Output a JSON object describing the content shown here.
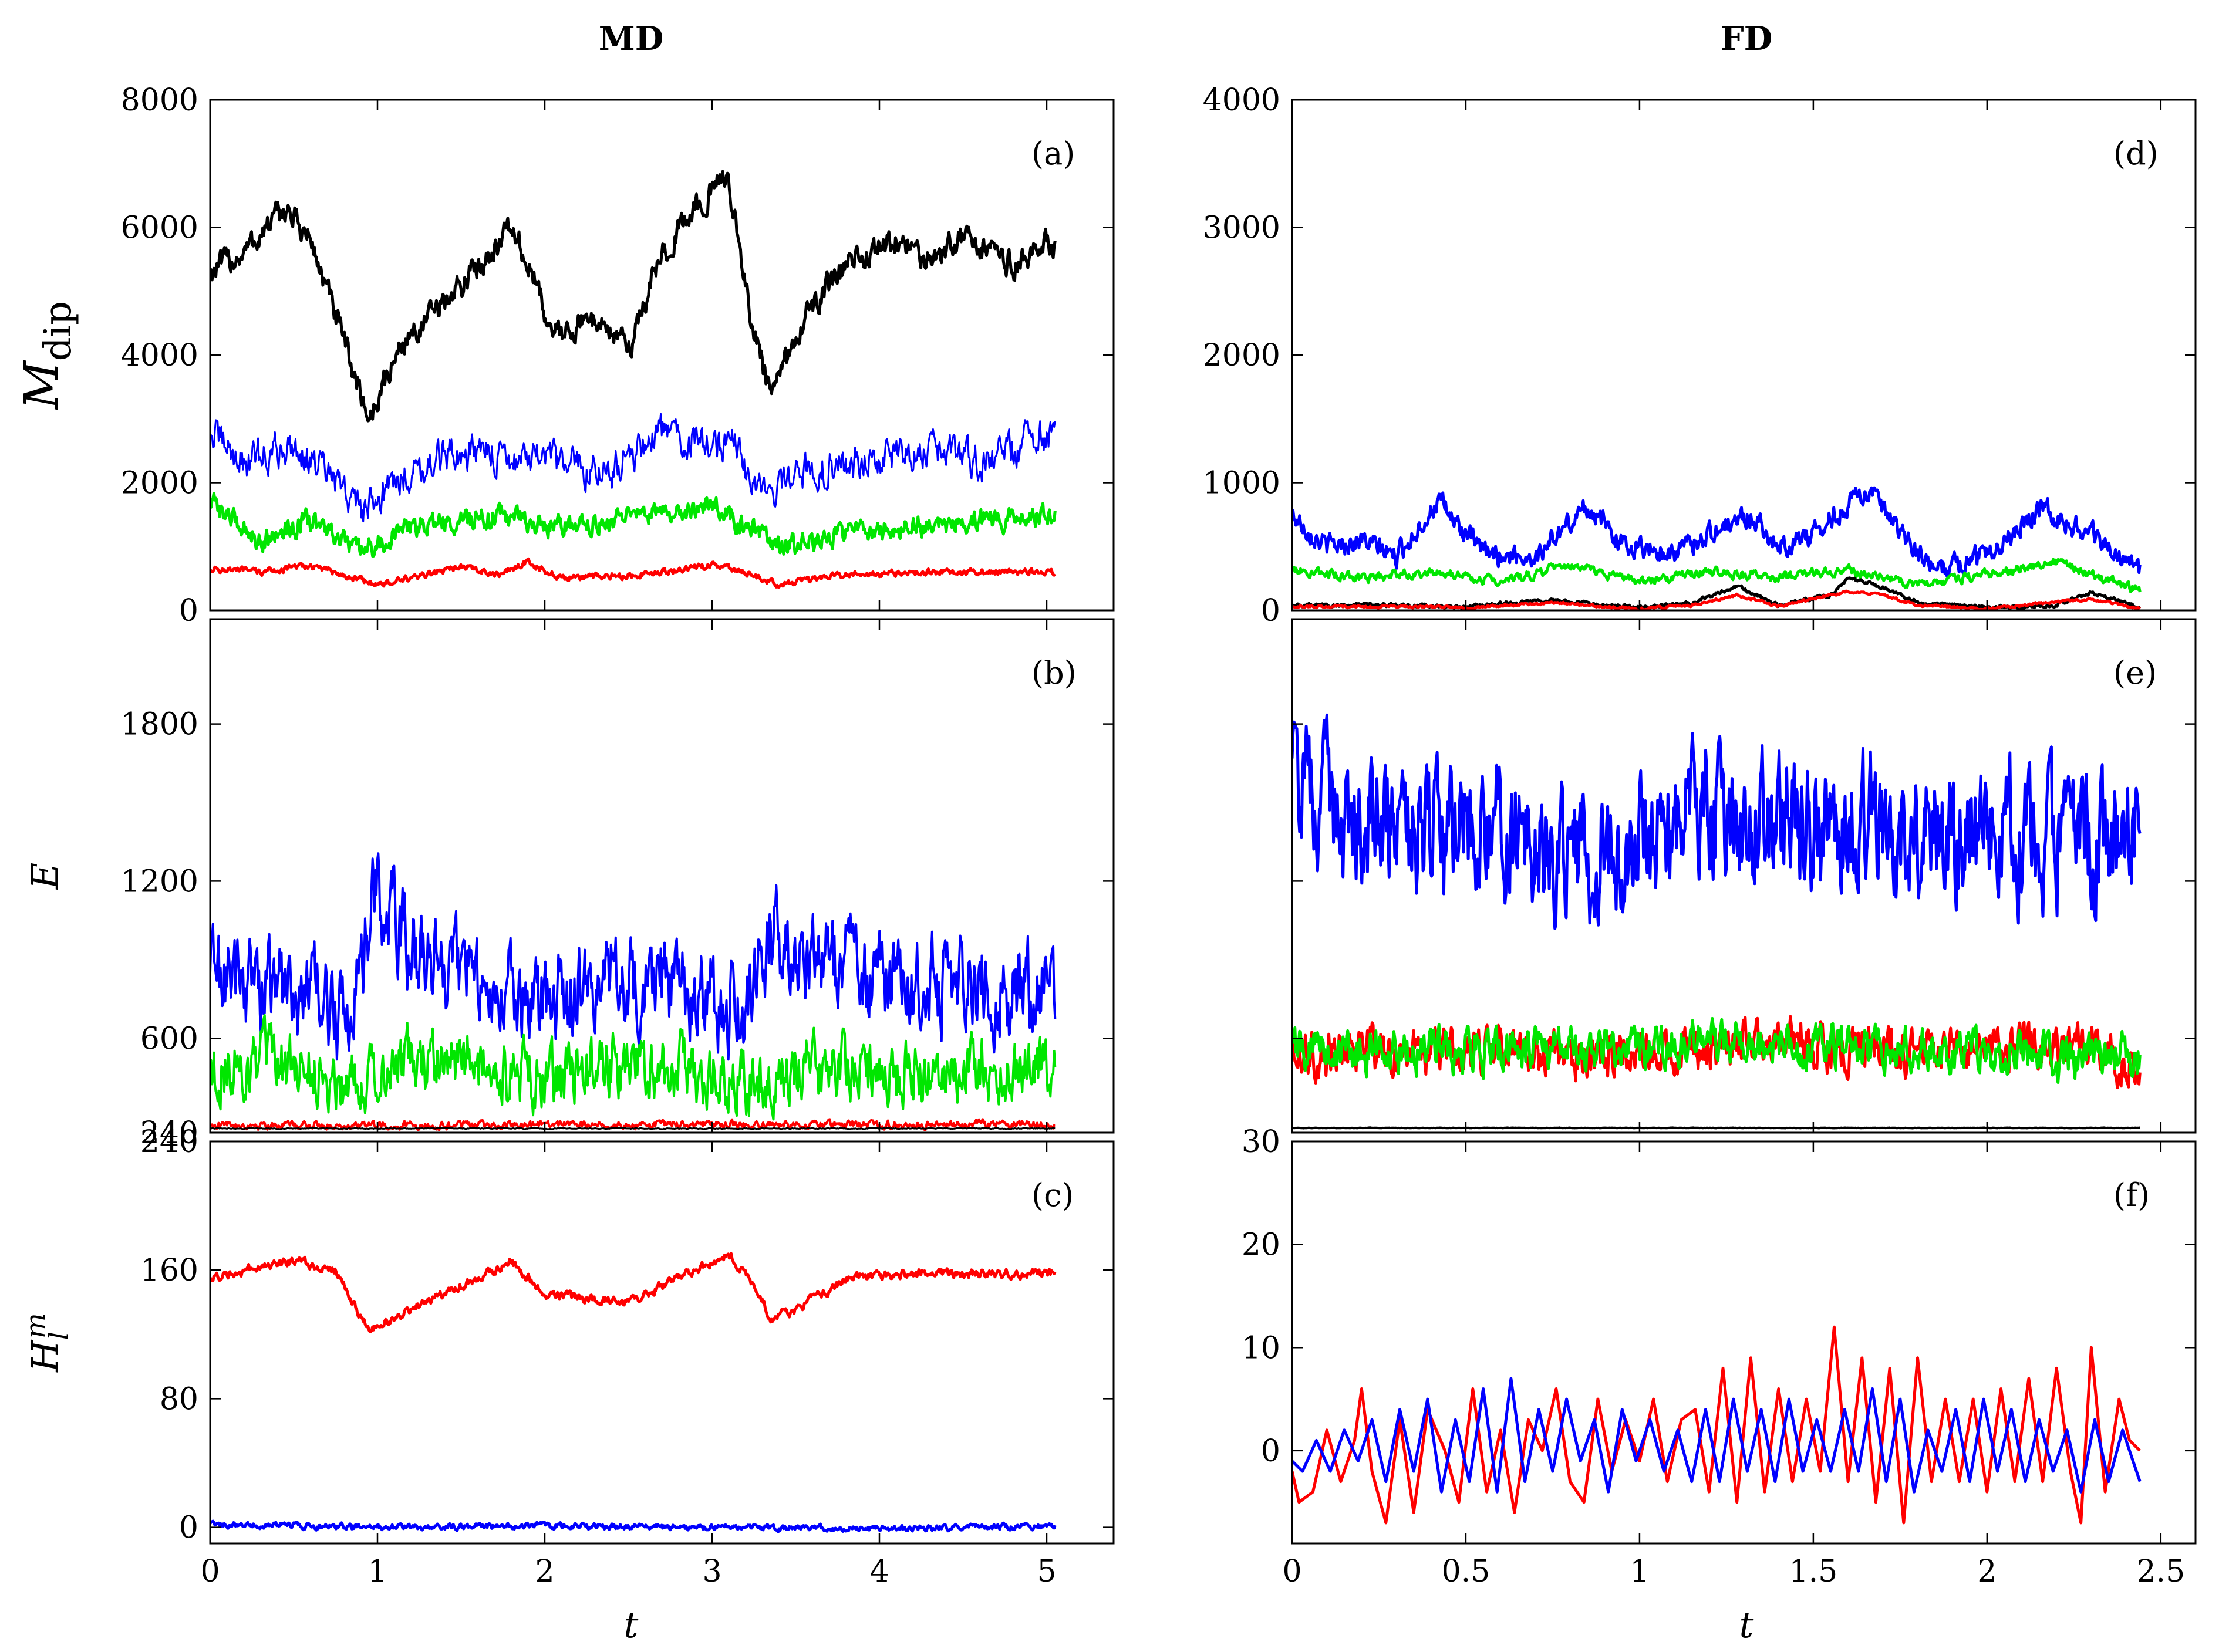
{
  "columns": [
    {
      "title": "MD"
    },
    {
      "title": "FD"
    }
  ],
  "xlabel": "t",
  "colors": {
    "black": "#000000",
    "blue": "#0000ff",
    "green": "#00e600",
    "red": "#ff0000"
  },
  "chart_data": [
    {
      "panel": "a",
      "label": "(a)",
      "type": "line",
      "ylabel": "M",
      "ylabel_sub": "dip",
      "xlim": [
        0,
        5.4
      ],
      "ylim": [
        0,
        8000
      ],
      "xticks": [
        0,
        1,
        2,
        3,
        4,
        5
      ],
      "yticks": [
        0,
        2000,
        4000,
        6000,
        8000
      ],
      "show_xticklabels": false,
      "series": [
        {
          "name": "black",
          "color": "#000000",
          "noise": 220,
          "width": 5,
          "x": [
            0,
            0.2,
            0.45,
            0.6,
            0.75,
            0.95,
            1.15,
            1.4,
            1.6,
            1.8,
            1.95,
            2.05,
            2.3,
            2.5,
            2.7,
            2.9,
            3.1,
            3.2,
            3.35,
            3.55,
            3.8,
            4.1,
            4.3,
            4.5,
            4.8,
            5.05
          ],
          "y": [
            5300,
            5600,
            6300,
            5800,
            4600,
            3000,
            4200,
            4800,
            5400,
            6000,
            5100,
            4300,
            4600,
            4100,
            5600,
            6300,
            6800,
            5000,
            3300,
            4600,
            5400,
            5800,
            5500,
            5900,
            5400,
            5800
          ]
        },
        {
          "name": "blue",
          "color": "#0000ff",
          "noise": 300,
          "width": 3,
          "x": [
            0,
            0.2,
            0.5,
            0.7,
            0.9,
            1.2,
            1.5,
            1.8,
            2.0,
            2.4,
            2.7,
            3.0,
            3.1,
            3.3,
            3.6,
            4.0,
            4.3,
            4.6,
            5.05
          ],
          "y": [
            2800,
            2300,
            2600,
            2100,
            1600,
            2200,
            2500,
            2400,
            2300,
            2200,
            2800,
            2600,
            2700,
            1800,
            2200,
            2400,
            2500,
            2300,
            2800
          ]
        },
        {
          "name": "green",
          "color": "#00e600",
          "noise": 180,
          "width": 5,
          "x": [
            0,
            0.3,
            0.6,
            0.9,
            1.2,
            1.5,
            1.8,
            2.0,
            2.3,
            2.7,
            3.0,
            3.2,
            3.4,
            3.8,
            4.2,
            4.6,
            5.05
          ],
          "y": [
            1700,
            1100,
            1400,
            900,
            1300,
            1400,
            1500,
            1300,
            1400,
            1500,
            1700,
            1300,
            1000,
            1200,
            1300,
            1400,
            1500
          ]
        },
        {
          "name": "red",
          "color": "#ff0000",
          "noise": 55,
          "width": 5,
          "x": [
            0,
            0.3,
            0.6,
            0.8,
            1.0,
            1.3,
            1.5,
            1.7,
            1.9,
            2.1,
            2.5,
            3.0,
            3.2,
            3.4,
            3.8,
            4.2,
            4.6,
            5.05
          ],
          "y": [
            650,
            600,
            700,
            550,
            400,
            550,
            700,
            550,
            750,
            500,
            550,
            700,
            600,
            400,
            550,
            600,
            600,
            600
          ]
        }
      ]
    },
    {
      "panel": "b",
      "label": "(b)",
      "type": "line",
      "ylabel": "E",
      "xlim": [
        0,
        5.4
      ],
      "ylim": [
        240,
        2200
      ],
      "xticks": [
        0,
        1,
        2,
        3,
        4,
        5
      ],
      "yticks": [
        240,
        600,
        1200,
        1800
      ],
      "show_xticklabels": false,
      "series": [
        {
          "name": "blue",
          "color": "#0000ff",
          "noise": 190,
          "width": 4,
          "x": [
            0,
            0.3,
            0.6,
            0.8,
            1.0,
            1.2,
            1.5,
            1.8,
            2.0,
            2.4,
            2.8,
            3.2,
            3.35,
            3.6,
            4.0,
            4.4,
            4.8,
            5.05
          ],
          "y": [
            870,
            800,
            780,
            650,
            1150,
            950,
            850,
            800,
            700,
            850,
            780,
            700,
            1000,
            900,
            820,
            800,
            780,
            800
          ]
        },
        {
          "name": "green",
          "color": "#00e600",
          "noise": 130,
          "width": 4,
          "x": [
            0,
            0.4,
            0.8,
            1.2,
            1.6,
            2.0,
            2.4,
            2.8,
            3.2,
            3.6,
            4.0,
            4.5,
            5.05
          ],
          "y": [
            480,
            500,
            440,
            520,
            470,
            430,
            500,
            480,
            430,
            500,
            470,
            480,
            500
          ]
        },
        {
          "name": "red",
          "color": "#ff0000",
          "noise": 16,
          "width": 4,
          "x": [
            0,
            1,
            2,
            3,
            4,
            5.05
          ],
          "y": [
            270,
            268,
            270,
            272,
            270,
            272
          ]
        },
        {
          "name": "black",
          "color": "#000000",
          "noise": 2,
          "width": 3,
          "x": [
            0,
            5.05
          ],
          "y": [
            256,
            256
          ]
        }
      ]
    },
    {
      "panel": "c",
      "label": "(c)",
      "type": "line",
      "ylabel": "H",
      "ylabel_sub": "l",
      "ylabel_sup": "m",
      "xlim": [
        0,
        5.4
      ],
      "ylim": [
        -10,
        240
      ],
      "xticks": [
        0,
        1,
        2,
        3,
        4,
        5
      ],
      "yticks": [
        0,
        80,
        160,
        240
      ],
      "show_xticklabels": true,
      "series": [
        {
          "name": "red",
          "color": "#ff0000",
          "noise": 3,
          "width": 5,
          "x": [
            0,
            0.2,
            0.5,
            0.75,
            0.85,
            0.95,
            1.2,
            1.5,
            1.8,
            2.0,
            2.5,
            3.1,
            3.25,
            3.35,
            3.5,
            3.8,
            4.2,
            5.05
          ],
          "y": [
            155,
            160,
            166,
            160,
            140,
            122,
            135,
            150,
            165,
            145,
            140,
            170,
            150,
            130,
            135,
            155,
            158,
            158
          ]
        },
        {
          "name": "blue",
          "color": "#0000ff",
          "noise": 2,
          "width": 5,
          "x": [
            0,
            1,
            2,
            3,
            4,
            5.05
          ],
          "y": [
            2,
            0,
            1,
            0,
            -1,
            1
          ]
        }
      ]
    },
    {
      "panel": "d",
      "label": "(d)",
      "type": "line",
      "xlim": [
        0,
        2.6
      ],
      "ylim": [
        0,
        4000
      ],
      "xticks": [
        0,
        0.5,
        1,
        1.5,
        2,
        2.5
      ],
      "yticks": [
        0,
        1000,
        2000,
        3000,
        4000
      ],
      "show_xticklabels": false,
      "series": [
        {
          "name": "blue",
          "color": "#0000ff",
          "noise": 90,
          "width": 5,
          "x": [
            0,
            0.1,
            0.2,
            0.3,
            0.42,
            0.55,
            0.7,
            0.85,
            0.95,
            1.1,
            1.2,
            1.32,
            1.4,
            1.5,
            1.65,
            1.75,
            1.85,
            2.0,
            2.15,
            2.3,
            2.44
          ],
          "y": [
            750,
            500,
            550,
            420,
            850,
            450,
            420,
            820,
            520,
            450,
            600,
            750,
            500,
            600,
            950,
            600,
            300,
            450,
            800,
            600,
            300
          ]
        },
        {
          "name": "green",
          "color": "#00e600",
          "noise": 40,
          "width": 5,
          "x": [
            0,
            0.2,
            0.4,
            0.6,
            0.8,
            1.0,
            1.2,
            1.4,
            1.6,
            1.8,
            2.0,
            2.2,
            2.44
          ],
          "y": [
            330,
            250,
            300,
            220,
            350,
            220,
            300,
            260,
            320,
            200,
            280,
            380,
            150
          ]
        },
        {
          "name": "black",
          "color": "#000000",
          "noise": 15,
          "width": 5,
          "x": [
            0,
            0.3,
            0.5,
            0.75,
            1.0,
            1.15,
            1.28,
            1.4,
            1.55,
            1.6,
            1.7,
            1.8,
            2.0,
            2.2,
            2.3,
            2.44
          ],
          "y": [
            40,
            40,
            30,
            80,
            20,
            60,
            190,
            40,
            120,
            250,
            180,
            60,
            20,
            40,
            140,
            20
          ]
        },
        {
          "name": "red",
          "color": "#ff0000",
          "noise": 10,
          "width": 5,
          "x": [
            0,
            0.3,
            0.5,
            0.75,
            1.0,
            1.15,
            1.28,
            1.4,
            1.6,
            1.7,
            1.8,
            2.0,
            2.3,
            2.44
          ],
          "y": [
            30,
            30,
            20,
            60,
            10,
            40,
            120,
            30,
            150,
            120,
            40,
            15,
            90,
            10
          ]
        }
      ]
    },
    {
      "panel": "e",
      "label": "(e)",
      "type": "line",
      "xlim": [
        0,
        2.6
      ],
      "ylim": [
        240,
        2200
      ],
      "xticks": [
        0,
        0.5,
        1,
        1.5,
        2,
        2.5
      ],
      "yticks": [
        240,
        600,
        1200,
        1800
      ],
      "show_yticklabels": false,
      "show_xticklabels": false,
      "series": [
        {
          "name": "blue",
          "color": "#0000ff",
          "noise": 260,
          "width": 5,
          "x": [
            0,
            0.2,
            0.4,
            0.6,
            0.8,
            1.0,
            1.2,
            1.4,
            1.6,
            1.8,
            2.0,
            2.2,
            2.44
          ],
          "y": [
            1550,
            1450,
            1350,
            1400,
            1300,
            1350,
            1450,
            1400,
            1450,
            1350,
            1400,
            1350,
            1350
          ]
        },
        {
          "name": "red",
          "color": "#ff0000",
          "noise": 90,
          "width": 5,
          "x": [
            0,
            0.2,
            0.4,
            0.6,
            0.8,
            1.0,
            1.2,
            1.4,
            1.5,
            1.6,
            1.8,
            2.0,
            2.2,
            2.44
          ],
          "y": [
            530,
            560,
            540,
            550,
            520,
            560,
            560,
            620,
            540,
            560,
            540,
            560,
            570,
            480
          ]
        },
        {
          "name": "green",
          "color": "#00e600",
          "noise": 85,
          "width": 5,
          "x": [
            0,
            0.3,
            0.6,
            0.9,
            1.2,
            1.5,
            1.8,
            2.1,
            2.44
          ],
          "y": [
            560,
            540,
            560,
            550,
            600,
            560,
            560,
            540,
            520
          ]
        },
        {
          "name": "black",
          "color": "#000000",
          "noise": 1,
          "width": 4,
          "x": [
            0,
            2.44
          ],
          "y": [
            258,
            258
          ]
        }
      ]
    },
    {
      "panel": "f",
      "label": "(f)",
      "type": "line",
      "xlim": [
        0,
        2.6
      ],
      "ylim": [
        -9,
        30
      ],
      "xticks": [
        0,
        0.5,
        1,
        1.5,
        2,
        2.5
      ],
      "yticks": [
        0,
        10,
        20,
        30
      ],
      "show_xticklabels": true,
      "series": [
        {
          "name": "red",
          "color": "#ff0000",
          "noise": 0,
          "width": 5,
          "x": [
            0.0,
            0.02,
            0.06,
            0.1,
            0.14,
            0.18,
            0.2,
            0.23,
            0.27,
            0.31,
            0.35,
            0.39,
            0.44,
            0.48,
            0.52,
            0.56,
            0.6,
            0.64,
            0.68,
            0.72,
            0.76,
            0.8,
            0.84,
            0.88,
            0.92,
            0.96,
            1.0,
            1.04,
            1.08,
            1.12,
            1.16,
            1.2,
            1.24,
            1.28,
            1.32,
            1.36,
            1.4,
            1.44,
            1.48,
            1.52,
            1.56,
            1.6,
            1.64,
            1.68,
            1.72,
            1.76,
            1.8,
            1.84,
            1.88,
            1.92,
            1.96,
            2.0,
            2.04,
            2.08,
            2.12,
            2.16,
            2.2,
            2.24,
            2.27,
            2.3,
            2.34,
            2.38,
            2.41,
            2.44
          ],
          "y": [
            -2,
            -5,
            -4,
            2,
            -3,
            1,
            6,
            -2,
            -7,
            3,
            -6,
            4,
            0,
            -5,
            6,
            -4,
            2,
            -6,
            3,
            0,
            6,
            -3,
            -5,
            5,
            -2,
            3,
            -1,
            5,
            -3,
            3,
            4,
            -4,
            8,
            -5,
            9,
            -4,
            6,
            -3,
            5,
            -2,
            12,
            -3,
            9,
            -5,
            8,
            -7,
            9,
            -3,
            5,
            -3,
            5,
            -4,
            6,
            -3,
            7,
            -3,
            8,
            -2,
            -7,
            10,
            -4,
            5,
            1,
            0
          ]
        },
        {
          "name": "blue",
          "color": "#0000ff",
          "noise": 0,
          "width": 5,
          "x": [
            0.0,
            0.03,
            0.07,
            0.11,
            0.15,
            0.19,
            0.23,
            0.27,
            0.31,
            0.35,
            0.39,
            0.43,
            0.47,
            0.51,
            0.55,
            0.59,
            0.63,
            0.67,
            0.71,
            0.75,
            0.79,
            0.83,
            0.87,
            0.91,
            0.95,
            0.99,
            1.03,
            1.07,
            1.11,
            1.15,
            1.19,
            1.23,
            1.27,
            1.31,
            1.35,
            1.39,
            1.43,
            1.47,
            1.51,
            1.55,
            1.59,
            1.63,
            1.67,
            1.71,
            1.75,
            1.79,
            1.83,
            1.87,
            1.91,
            1.95,
            1.99,
            2.03,
            2.07,
            2.11,
            2.15,
            2.19,
            2.23,
            2.27,
            2.31,
            2.35,
            2.39,
            2.44
          ],
          "y": [
            -1,
            -2,
            1,
            -2,
            2,
            -1,
            3,
            -3,
            4,
            -2,
            5,
            -4,
            3,
            -3,
            6,
            -4,
            7,
            -3,
            4,
            -2,
            5,
            -1,
            3,
            -4,
            4,
            -1,
            3,
            -2,
            2,
            -3,
            4,
            -3,
            5,
            -2,
            4,
            -3,
            5,
            -2,
            3,
            -2,
            4,
            -2,
            6,
            -3,
            5,
            -4,
            2,
            -2,
            4,
            -3,
            5,
            -2,
            4,
            -3,
            3,
            -2,
            2,
            -4,
            3,
            -3,
            2,
            -3
          ]
        }
      ]
    }
  ]
}
